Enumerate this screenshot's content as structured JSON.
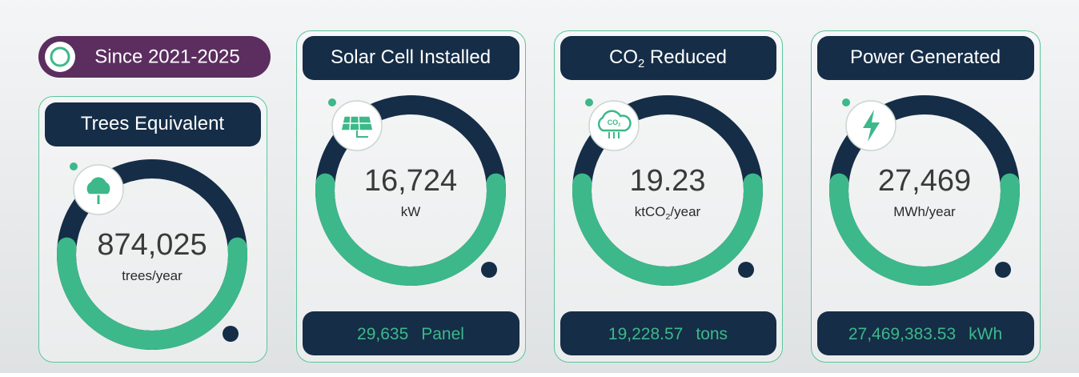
{
  "badge": "Since 2021-2025",
  "cards": [
    {
      "title": [
        "Trees Equivalent"
      ],
      "value": "874,025",
      "unit": [
        "trees/year"
      ]
    },
    {
      "title": [
        "Solar Cell Installed"
      ],
      "value": "16,724",
      "unit": [
        "kW"
      ],
      "footer": {
        "amount": "29,635",
        "unit": "Panel"
      }
    },
    {
      "title": [
        "CO",
        "2",
        " Reduced"
      ],
      "value": "19.23",
      "unit": [
        "ktCO",
        "2",
        "/year"
      ],
      "icon_text": [
        "CO",
        "2"
      ],
      "footer": {
        "amount": "19,228.57",
        "unit": "tons"
      }
    },
    {
      "title": [
        "Power Generated"
      ],
      "value": "27,469",
      "unit": [
        "MWh/year"
      ],
      "footer": {
        "amount": "27,469,383.53",
        "unit": "kWh"
      }
    }
  ]
}
